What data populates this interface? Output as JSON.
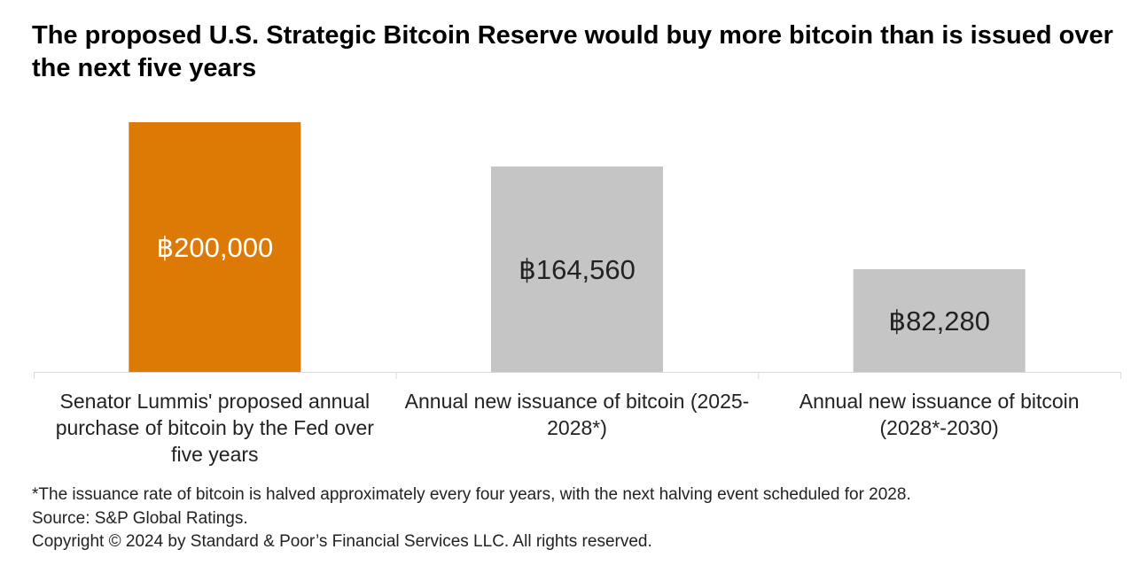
{
  "chart_data": {
    "type": "bar",
    "title": "The proposed U.S. Strategic Bitcoin Reserve would buy more bitcoin than is issued over the next five years",
    "categories": [
      "Senator Lummis' proposed annual purchase of bitcoin by the Fed over five years",
      "Annual new issuance of bitcoin (2025-2028*)",
      "Annual new issuance of bitcoin (2028*-2030)"
    ],
    "values": [
      200000,
      164560,
      82280
    ],
    "data_labels": [
      "฿200,000",
      "฿164,560",
      "฿82,280"
    ],
    "ylim": [
      0,
      200000
    ],
    "grid": false,
    "legend": "none",
    "colors": {
      "highlight_bar": "#DD7A06",
      "bar": "#C4C5C4",
      "highlight_label": "#FFFFFF",
      "label": "#222222",
      "baseline": "#D9D9D9"
    }
  },
  "footer": {
    "note": "*The issuance rate of bitcoin is halved approximately every four years, with the next halving event scheduled for 2028.",
    "source": "Source: S&P Global Ratings.",
    "copyright": "Copyright © 2024 by Standard & Poor’s Financial Services LLC. All rights reserved."
  }
}
